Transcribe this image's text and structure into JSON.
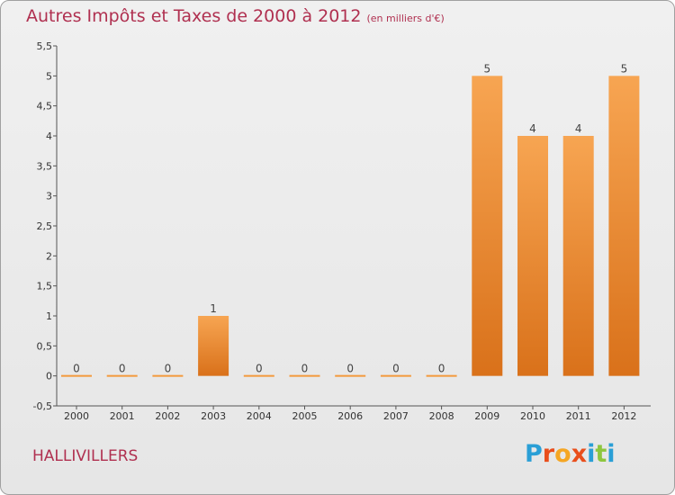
{
  "title": "Autres Impôts et Taxes de 2000 à 2012",
  "subtitle": "(en milliers d'€)",
  "city": "HALLIVILLERS",
  "brand": [
    "P",
    "r",
    "o",
    "x",
    "i",
    "t",
    "i"
  ],
  "brand_colors": [
    "#2a9fd6",
    "#e94e1b",
    "#f5a623",
    "#e94e1b",
    "#2a9fd6",
    "#8dc63f",
    "#2a9fd6"
  ],
  "bar_color": "#f39a3d",
  "chart_data": {
    "type": "bar",
    "title": "Autres Impôts et Taxes de 2000 à 2012",
    "subtitle": "(en milliers d'€)",
    "categories": [
      "2000",
      "2001",
      "2002",
      "2003",
      "2004",
      "2005",
      "2006",
      "2007",
      "2008",
      "2009",
      "2010",
      "2011",
      "2012"
    ],
    "values": [
      0,
      0,
      0,
      1,
      0,
      0,
      0,
      0,
      0,
      5,
      4,
      4,
      5
    ],
    "data_labels": [
      "0",
      "0",
      "0",
      "1",
      "0",
      "0",
      "0",
      "0",
      "0",
      "5",
      "4",
      "4",
      "5"
    ],
    "ylim": [
      -0.5,
      5.5
    ],
    "yticks": [
      "-0,5",
      "0",
      "0,5",
      "1",
      "1,5",
      "2",
      "2,5",
      "3",
      "3,5",
      "4",
      "4,5",
      "5",
      "5,5"
    ],
    "grid": false,
    "xlabel": "",
    "ylabel": ""
  }
}
